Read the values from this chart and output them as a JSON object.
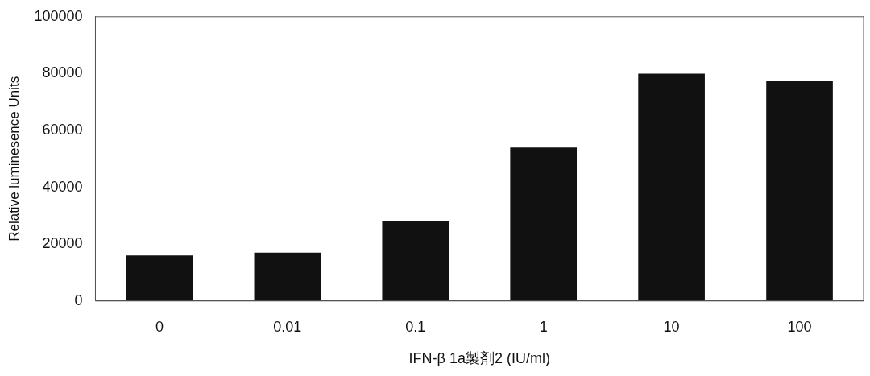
{
  "chart_data": {
    "type": "bar",
    "xlabel": "IFN-β 1a製剤2 (IU/ml)",
    "ylabel": "Relative luminesence Units",
    "categories": [
      "0",
      "0.01",
      "0.1",
      "1",
      "10",
      "100"
    ],
    "values": [
      16000,
      17000,
      28000,
      54000,
      80000,
      77500
    ],
    "color": "#111111",
    "ylim": [
      0,
      100000
    ],
    "yticks": [
      0,
      20000,
      40000,
      60000,
      80000,
      100000
    ],
    "grid": false,
    "legend": false
  }
}
